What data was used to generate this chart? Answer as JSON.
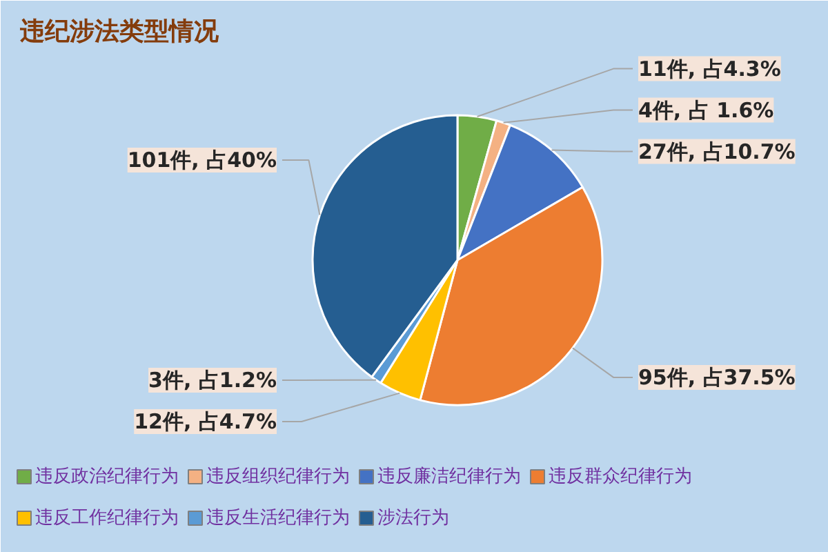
{
  "chart_data": {
    "type": "pie",
    "title": "违纪涉法类型情况",
    "categories": [
      "违反政治纪律行为",
      "违反组织纪律行为",
      "违反廉洁纪律行为",
      "违反群众纪律行为",
      "违反工作纪律行为",
      "违反生活纪律行为",
      "涉法行为"
    ],
    "values": [
      11,
      4,
      27,
      95,
      12,
      3,
      101
    ],
    "colors": [
      "#70ad47",
      "#f4b183",
      "#4472c4",
      "#ed7d31",
      "#ffc000",
      "#5b9bd5",
      "#255e91"
    ],
    "value_labels": [
      "11件, 占4.3%",
      "4件, 占 1.6%",
      "27件, 占10.7%",
      "95件, 占37.5%",
      "12件, 占4.7%",
      "3件, 占1.2%",
      "101件, 占40%"
    ],
    "legend": "bottom"
  }
}
